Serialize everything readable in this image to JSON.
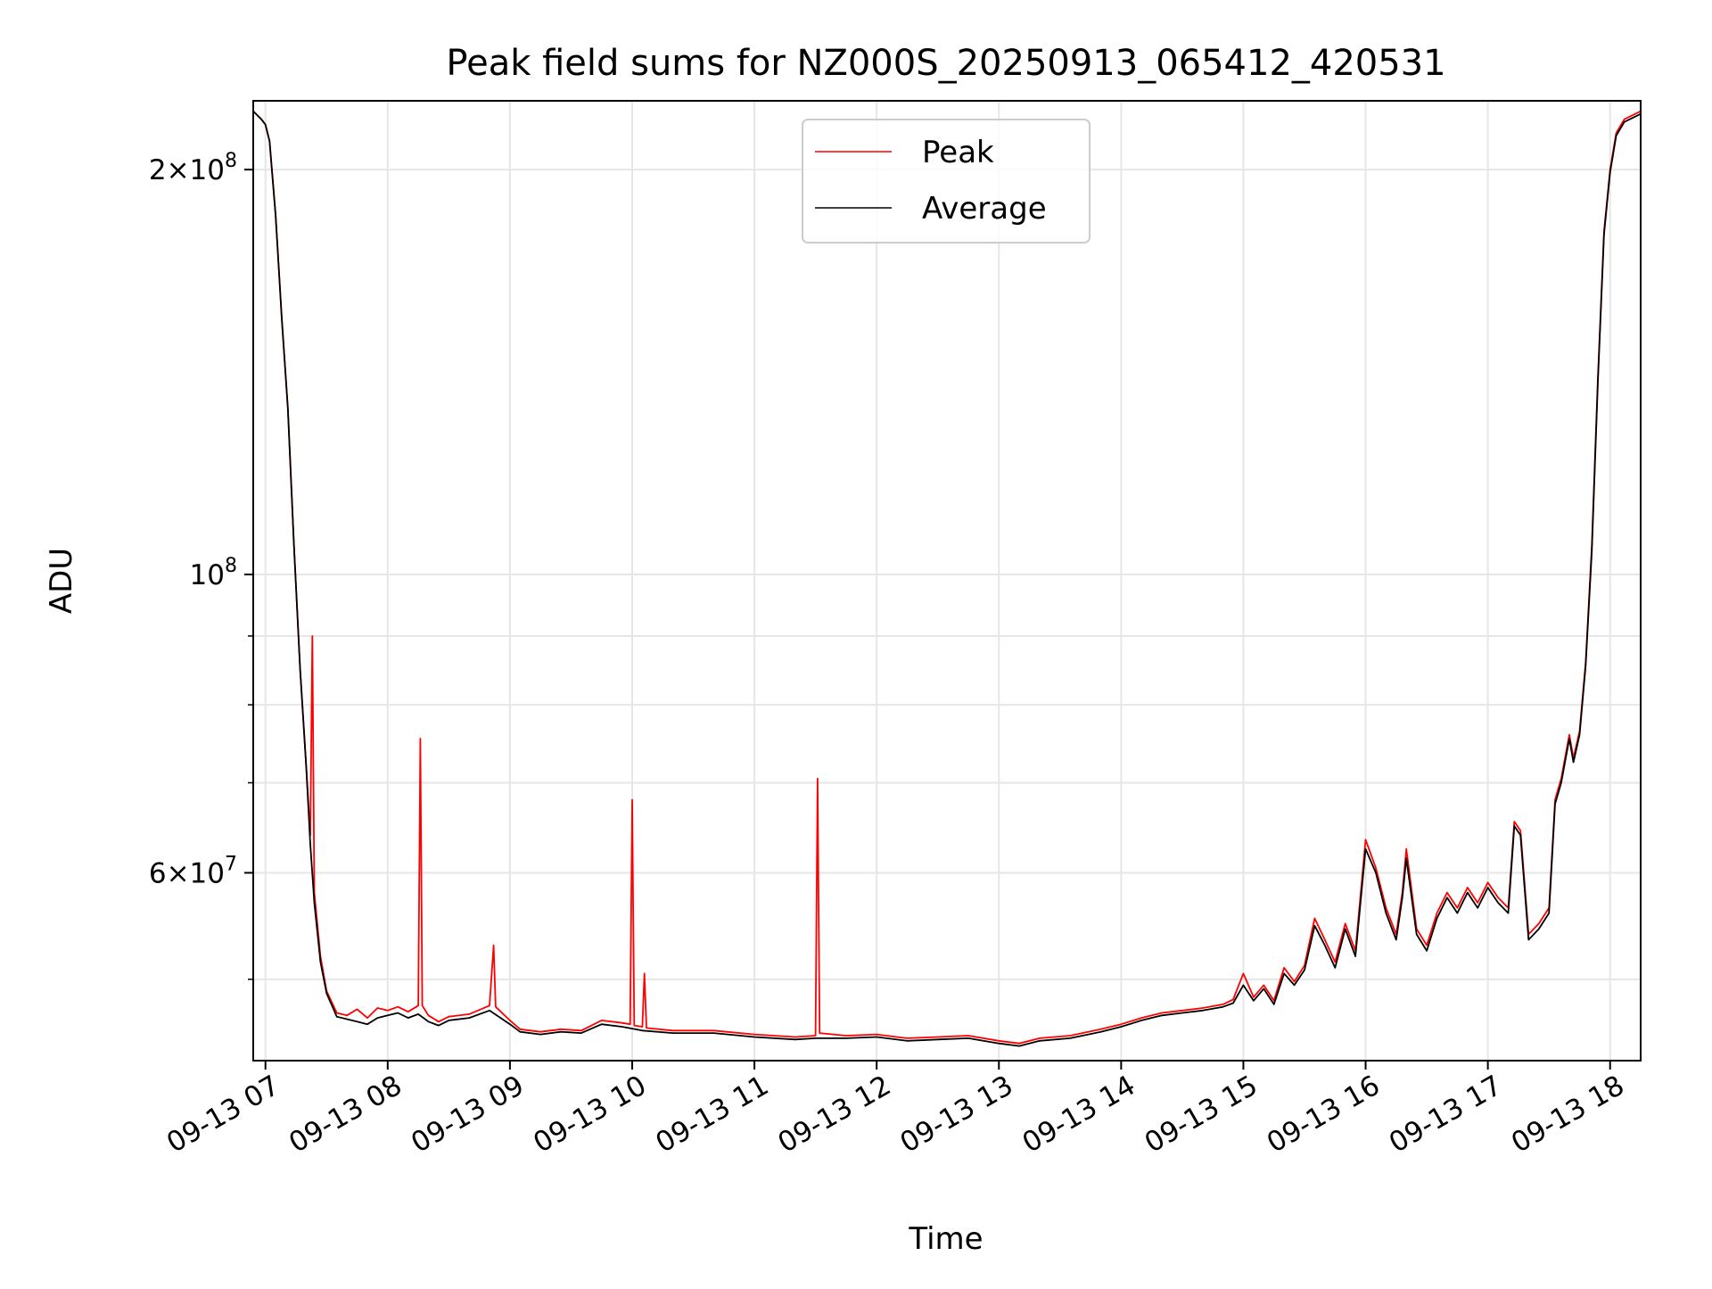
{
  "chart_data": {
    "type": "line",
    "title": "Peak field sums for NZ000S_20250913_065412_420531",
    "xlabel": "Time",
    "ylabel": "ADU",
    "x_scale": "time",
    "y_scale": "log",
    "xlim": [
      "2025-09-13 06:54",
      "2025-09-13 18:15"
    ],
    "ylim": [
      43500000,
      225000000
    ],
    "grid": true,
    "legend_position": "upper center",
    "x_ticks": [
      {
        "time": "2025-09-13 07:00",
        "label": "09-13 07"
      },
      {
        "time": "2025-09-13 08:00",
        "label": "09-13 08"
      },
      {
        "time": "2025-09-13 09:00",
        "label": "09-13 09"
      },
      {
        "time": "2025-09-13 10:00",
        "label": "09-13 10"
      },
      {
        "time": "2025-09-13 11:00",
        "label": "09-13 11"
      },
      {
        "time": "2025-09-13 12:00",
        "label": "09-13 12"
      },
      {
        "time": "2025-09-13 13:00",
        "label": "09-13 13"
      },
      {
        "time": "2025-09-13 14:00",
        "label": "09-13 14"
      },
      {
        "time": "2025-09-13 15:00",
        "label": "09-13 15"
      },
      {
        "time": "2025-09-13 16:00",
        "label": "09-13 16"
      },
      {
        "time": "2025-09-13 17:00",
        "label": "09-13 17"
      },
      {
        "time": "2025-09-13 18:00",
        "label": "09-13 18"
      }
    ],
    "y_ticks": [
      {
        "value": 60000000,
        "mant": "6",
        "exp": "7"
      },
      {
        "value": 100000000,
        "mant": "",
        "exp": "8"
      },
      {
        "value": 200000000,
        "mant": "2",
        "exp": "8"
      }
    ],
    "y_minor_ticks": [
      50000000,
      70000000,
      80000000,
      90000000
    ],
    "series": [
      {
        "name": "Peak",
        "color": "#ff0000",
        "points": [
          [
            "2025-09-13 06:54",
            221000000
          ],
          [
            "2025-09-13 06:58",
            218000000
          ],
          [
            "2025-09-13 07:00",
            216000000
          ],
          [
            "2025-09-13 07:02",
            210000000
          ],
          [
            "2025-09-13 07:05",
            185000000
          ],
          [
            "2025-09-13 07:08",
            155000000
          ],
          [
            "2025-09-13 07:11",
            133000000
          ],
          [
            "2025-09-13 07:14",
            105000000
          ],
          [
            "2025-09-13 07:17",
            85000000
          ],
          [
            "2025-09-13 07:20",
            72000000
          ],
          [
            "2025-09-13 07:22",
            64000000
          ],
          [
            "2025-09-13 07:23",
            90000000
          ],
          [
            "2025-09-13 07:24",
            58000000
          ],
          [
            "2025-09-13 07:27",
            52000000
          ],
          [
            "2025-09-13 07:30",
            49000000
          ],
          [
            "2025-09-13 07:35",
            47200000
          ],
          [
            "2025-09-13 07:40",
            47000000
          ],
          [
            "2025-09-13 07:45",
            47500000
          ],
          [
            "2025-09-13 07:50",
            46800000
          ],
          [
            "2025-09-13 07:55",
            47600000
          ],
          [
            "2025-09-13 08:00",
            47400000
          ],
          [
            "2025-09-13 08:05",
            47700000
          ],
          [
            "2025-09-13 08:10",
            47300000
          ],
          [
            "2025-09-13 08:15",
            47800000
          ],
          [
            "2025-09-13 08:16",
            75500000
          ],
          [
            "2025-09-13 08:17",
            47800000
          ],
          [
            "2025-09-13 08:20",
            47000000
          ],
          [
            "2025-09-13 08:25",
            46500000
          ],
          [
            "2025-09-13 08:30",
            46900000
          ],
          [
            "2025-09-13 08:40",
            47100000
          ],
          [
            "2025-09-13 08:50",
            47800000
          ],
          [
            "2025-09-13 08:52",
            53000000
          ],
          [
            "2025-09-13 08:53",
            47700000
          ],
          [
            "2025-09-13 09:00",
            46600000
          ],
          [
            "2025-09-13 09:05",
            45900000
          ],
          [
            "2025-09-13 09:15",
            45700000
          ],
          [
            "2025-09-13 09:25",
            45900000
          ],
          [
            "2025-09-13 09:35",
            45800000
          ],
          [
            "2025-09-13 09:45",
            46600000
          ],
          [
            "2025-09-13 09:55",
            46400000
          ],
          [
            "2025-09-13 09:59",
            46300000
          ],
          [
            "2025-09-13 10:00",
            68000000
          ],
          [
            "2025-09-13 10:01",
            46200000
          ],
          [
            "2025-09-13 10:05",
            46100000
          ],
          [
            "2025-09-13 10:06",
            50500000
          ],
          [
            "2025-09-13 10:07",
            46000000
          ],
          [
            "2025-09-13 10:20",
            45800000
          ],
          [
            "2025-09-13 10:40",
            45800000
          ],
          [
            "2025-09-13 11:00",
            45500000
          ],
          [
            "2025-09-13 11:20",
            45300000
          ],
          [
            "2025-09-13 11:30",
            45400000
          ],
          [
            "2025-09-13 11:31",
            70500000
          ],
          [
            "2025-09-13 11:32",
            45600000
          ],
          [
            "2025-09-13 11:45",
            45400000
          ],
          [
            "2025-09-13 12:00",
            45500000
          ],
          [
            "2025-09-13 12:15",
            45200000
          ],
          [
            "2025-09-13 12:30",
            45300000
          ],
          [
            "2025-09-13 12:45",
            45400000
          ],
          [
            "2025-09-13 13:00",
            45000000
          ],
          [
            "2025-09-13 13:10",
            44800000
          ],
          [
            "2025-09-13 13:20",
            45200000
          ],
          [
            "2025-09-13 13:35",
            45400000
          ],
          [
            "2025-09-13 13:50",
            45900000
          ],
          [
            "2025-09-13 14:00",
            46300000
          ],
          [
            "2025-09-13 14:10",
            46800000
          ],
          [
            "2025-09-13 14:20",
            47200000
          ],
          [
            "2025-09-13 14:30",
            47400000
          ],
          [
            "2025-09-13 14:40",
            47600000
          ],
          [
            "2025-09-13 14:50",
            47900000
          ],
          [
            "2025-09-13 14:55",
            48300000
          ],
          [
            "2025-09-13 15:00",
            50500000
          ],
          [
            "2025-09-13 15:05",
            48500000
          ],
          [
            "2025-09-13 15:10",
            49500000
          ],
          [
            "2025-09-13 15:15",
            48200000
          ],
          [
            "2025-09-13 15:20",
            51000000
          ],
          [
            "2025-09-13 15:25",
            49800000
          ],
          [
            "2025-09-13 15:30",
            51200000
          ],
          [
            "2025-09-13 15:35",
            55500000
          ],
          [
            "2025-09-13 15:40",
            53500000
          ],
          [
            "2025-09-13 15:45",
            51500000
          ],
          [
            "2025-09-13 15:50",
            55000000
          ],
          [
            "2025-09-13 15:55",
            52500000
          ],
          [
            "2025-09-13 16:00",
            63500000
          ],
          [
            "2025-09-13 16:05",
            60500000
          ],
          [
            "2025-09-13 16:10",
            56500000
          ],
          [
            "2025-09-13 16:15",
            54000000
          ],
          [
            "2025-09-13 16:18",
            58000000
          ],
          [
            "2025-09-13 16:20",
            62500000
          ],
          [
            "2025-09-13 16:25",
            54500000
          ],
          [
            "2025-09-13 16:30",
            53000000
          ],
          [
            "2025-09-13 16:35",
            56000000
          ],
          [
            "2025-09-13 16:40",
            58000000
          ],
          [
            "2025-09-13 16:45",
            56500000
          ],
          [
            "2025-09-13 16:50",
            58500000
          ],
          [
            "2025-09-13 16:55",
            57000000
          ],
          [
            "2025-09-13 17:00",
            59000000
          ],
          [
            "2025-09-13 17:05",
            57500000
          ],
          [
            "2025-09-13 17:10",
            56500000
          ],
          [
            "2025-09-13 17:13",
            65500000
          ],
          [
            "2025-09-13 17:16",
            64500000
          ],
          [
            "2025-09-13 17:20",
            54000000
          ],
          [
            "2025-09-13 17:25",
            55000000
          ],
          [
            "2025-09-13 17:30",
            56500000
          ],
          [
            "2025-09-13 17:33",
            68000000
          ],
          [
            "2025-09-13 17:36",
            70500000
          ],
          [
            "2025-09-13 17:40",
            76000000
          ],
          [
            "2025-09-13 17:42",
            73000000
          ],
          [
            "2025-09-13 17:45",
            76500000
          ],
          [
            "2025-09-13 17:48",
            86000000
          ],
          [
            "2025-09-13 17:51",
            105000000
          ],
          [
            "2025-09-13 17:54",
            140000000
          ],
          [
            "2025-09-13 17:57",
            180000000
          ],
          [
            "2025-09-13 18:00",
            200000000
          ],
          [
            "2025-09-13 18:03",
            213000000
          ],
          [
            "2025-09-13 18:07",
            218000000
          ],
          [
            "2025-09-13 18:15",
            221000000
          ]
        ]
      },
      {
        "name": "Average",
        "color": "#000000",
        "points": [
          [
            "2025-09-13 06:54",
            221000000
          ],
          [
            "2025-09-13 06:58",
            218000000
          ],
          [
            "2025-09-13 07:00",
            216000000
          ],
          [
            "2025-09-13 07:02",
            210000000
          ],
          [
            "2025-09-13 07:05",
            185000000
          ],
          [
            "2025-09-13 07:08",
            155000000
          ],
          [
            "2025-09-13 07:11",
            133000000
          ],
          [
            "2025-09-13 07:14",
            105000000
          ],
          [
            "2025-09-13 07:17",
            85000000
          ],
          [
            "2025-09-13 07:20",
            72000000
          ],
          [
            "2025-09-13 07:22",
            63000000
          ],
          [
            "2025-09-13 07:24",
            57000000
          ],
          [
            "2025-09-13 07:27",
            51500000
          ],
          [
            "2025-09-13 07:30",
            48800000
          ],
          [
            "2025-09-13 07:35",
            46900000
          ],
          [
            "2025-09-13 07:40",
            46700000
          ],
          [
            "2025-09-13 07:45",
            46500000
          ],
          [
            "2025-09-13 07:50",
            46300000
          ],
          [
            "2025-09-13 07:55",
            46800000
          ],
          [
            "2025-09-13 08:00",
            47000000
          ],
          [
            "2025-09-13 08:05",
            47200000
          ],
          [
            "2025-09-13 08:10",
            46800000
          ],
          [
            "2025-09-13 08:15",
            47100000
          ],
          [
            "2025-09-13 08:20",
            46500000
          ],
          [
            "2025-09-13 08:25",
            46200000
          ],
          [
            "2025-09-13 08:30",
            46600000
          ],
          [
            "2025-09-13 08:40",
            46800000
          ],
          [
            "2025-09-13 08:50",
            47400000
          ],
          [
            "2025-09-13 09:00",
            46300000
          ],
          [
            "2025-09-13 09:05",
            45700000
          ],
          [
            "2025-09-13 09:15",
            45500000
          ],
          [
            "2025-09-13 09:25",
            45700000
          ],
          [
            "2025-09-13 09:35",
            45600000
          ],
          [
            "2025-09-13 09:45",
            46300000
          ],
          [
            "2025-09-13 09:55",
            46100000
          ],
          [
            "2025-09-13 10:05",
            45800000
          ],
          [
            "2025-09-13 10:20",
            45600000
          ],
          [
            "2025-09-13 10:40",
            45600000
          ],
          [
            "2025-09-13 11:00",
            45300000
          ],
          [
            "2025-09-13 11:20",
            45100000
          ],
          [
            "2025-09-13 11:30",
            45200000
          ],
          [
            "2025-09-13 11:45",
            45200000
          ],
          [
            "2025-09-13 12:00",
            45300000
          ],
          [
            "2025-09-13 12:15",
            45000000
          ],
          [
            "2025-09-13 12:30",
            45100000
          ],
          [
            "2025-09-13 12:45",
            45200000
          ],
          [
            "2025-09-13 13:00",
            44800000
          ],
          [
            "2025-09-13 13:10",
            44600000
          ],
          [
            "2025-09-13 13:20",
            45000000
          ],
          [
            "2025-09-13 13:35",
            45200000
          ],
          [
            "2025-09-13 13:50",
            45700000
          ],
          [
            "2025-09-13 14:00",
            46100000
          ],
          [
            "2025-09-13 14:10",
            46600000
          ],
          [
            "2025-09-13 14:20",
            47000000
          ],
          [
            "2025-09-13 14:30",
            47200000
          ],
          [
            "2025-09-13 14:40",
            47400000
          ],
          [
            "2025-09-13 14:50",
            47700000
          ],
          [
            "2025-09-13 14:55",
            48000000
          ],
          [
            "2025-09-13 15:00",
            49500000
          ],
          [
            "2025-09-13 15:05",
            48200000
          ],
          [
            "2025-09-13 15:10",
            49200000
          ],
          [
            "2025-09-13 15:15",
            47900000
          ],
          [
            "2025-09-13 15:20",
            50500000
          ],
          [
            "2025-09-13 15:25",
            49500000
          ],
          [
            "2025-09-13 15:30",
            50800000
          ],
          [
            "2025-09-13 15:35",
            54800000
          ],
          [
            "2025-09-13 15:40",
            53000000
          ],
          [
            "2025-09-13 15:45",
            51000000
          ],
          [
            "2025-09-13 15:50",
            54500000
          ],
          [
            "2025-09-13 15:55",
            52000000
          ],
          [
            "2025-09-13 16:00",
            62500000
          ],
          [
            "2025-09-13 16:05",
            60000000
          ],
          [
            "2025-09-13 16:10",
            56000000
          ],
          [
            "2025-09-13 16:15",
            53500000
          ],
          [
            "2025-09-13 16:18",
            57500000
          ],
          [
            "2025-09-13 16:20",
            61500000
          ],
          [
            "2025-09-13 16:25",
            54000000
          ],
          [
            "2025-09-13 16:30",
            52500000
          ],
          [
            "2025-09-13 16:35",
            55500000
          ],
          [
            "2025-09-13 16:40",
            57500000
          ],
          [
            "2025-09-13 16:45",
            56000000
          ],
          [
            "2025-09-13 16:50",
            58000000
          ],
          [
            "2025-09-13 16:55",
            56500000
          ],
          [
            "2025-09-13 17:00",
            58500000
          ],
          [
            "2025-09-13 17:05",
            57000000
          ],
          [
            "2025-09-13 17:10",
            56000000
          ],
          [
            "2025-09-13 17:13",
            65000000
          ],
          [
            "2025-09-13 17:16",
            64000000
          ],
          [
            "2025-09-13 17:20",
            53500000
          ],
          [
            "2025-09-13 17:25",
            54500000
          ],
          [
            "2025-09-13 17:30",
            56000000
          ],
          [
            "2025-09-13 17:33",
            67500000
          ],
          [
            "2025-09-13 17:36",
            70000000
          ],
          [
            "2025-09-13 17:40",
            75500000
          ],
          [
            "2025-09-13 17:42",
            72500000
          ],
          [
            "2025-09-13 17:45",
            76000000
          ],
          [
            "2025-09-13 17:48",
            85500000
          ],
          [
            "2025-09-13 17:51",
            104000000
          ],
          [
            "2025-09-13 17:54",
            139000000
          ],
          [
            "2025-09-13 17:57",
            179000000
          ],
          [
            "2025-09-13 18:00",
            199000000
          ],
          [
            "2025-09-13 18:03",
            212000000
          ],
          [
            "2025-09-13 18:07",
            217000000
          ],
          [
            "2025-09-13 18:15",
            220000000
          ]
        ]
      }
    ]
  }
}
